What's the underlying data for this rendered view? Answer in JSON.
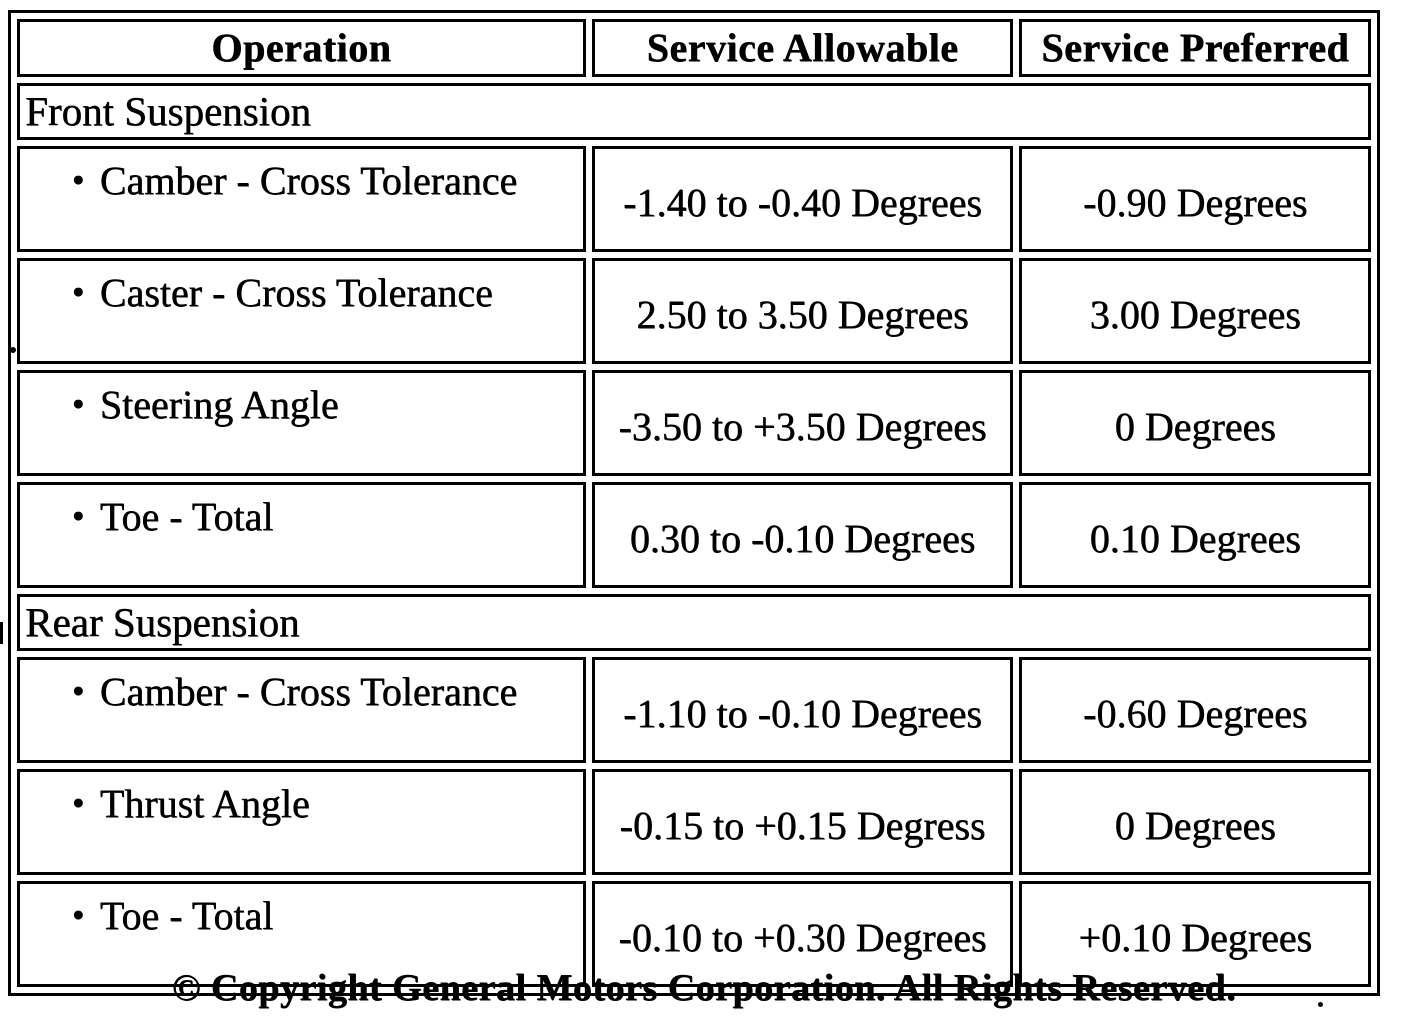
{
  "colors": {
    "ink": "#000000",
    "paper": "#ffffff"
  },
  "table": {
    "bullet": "●",
    "headers": [
      "Operation",
      "Service Allowable",
      "Service Preferred"
    ],
    "sections": [
      {
        "title": "Front Suspension",
        "rows": [
          {
            "operation": "Camber - Cross Tolerance",
            "allowable": "-1.40 to -0.40 Degrees",
            "preferred": "-0.90 Degrees"
          },
          {
            "operation": "Caster - Cross Tolerance",
            "allowable": "2.50 to 3.50 Degrees",
            "preferred": "3.00 Degrees"
          },
          {
            "operation": "Steering Angle",
            "allowable": "-3.50 to +3.50 Degrees",
            "preferred": "0 Degrees"
          },
          {
            "operation": "Toe - Total",
            "allowable": "0.30 to -0.10 Degrees",
            "preferred": "0.10 Degrees"
          }
        ]
      },
      {
        "title": "Rear Suspension",
        "rows": [
          {
            "operation": "Camber - Cross Tolerance",
            "allowable": "-1.10 to -0.10 Degrees",
            "preferred": "-0.60 Degrees"
          },
          {
            "operation": "Thrust Angle",
            "allowable": "-0.15 to +0.15 Degress",
            "preferred": "0 Degrees"
          },
          {
            "operation": "Toe - Total",
            "allowable": "-0.10 to +0.30 Degrees",
            "preferred": "+0.10 Degrees"
          }
        ]
      }
    ]
  },
  "footer": {
    "copyright": "© Copyright General Motors Corporation. All Rights Reserved."
  }
}
